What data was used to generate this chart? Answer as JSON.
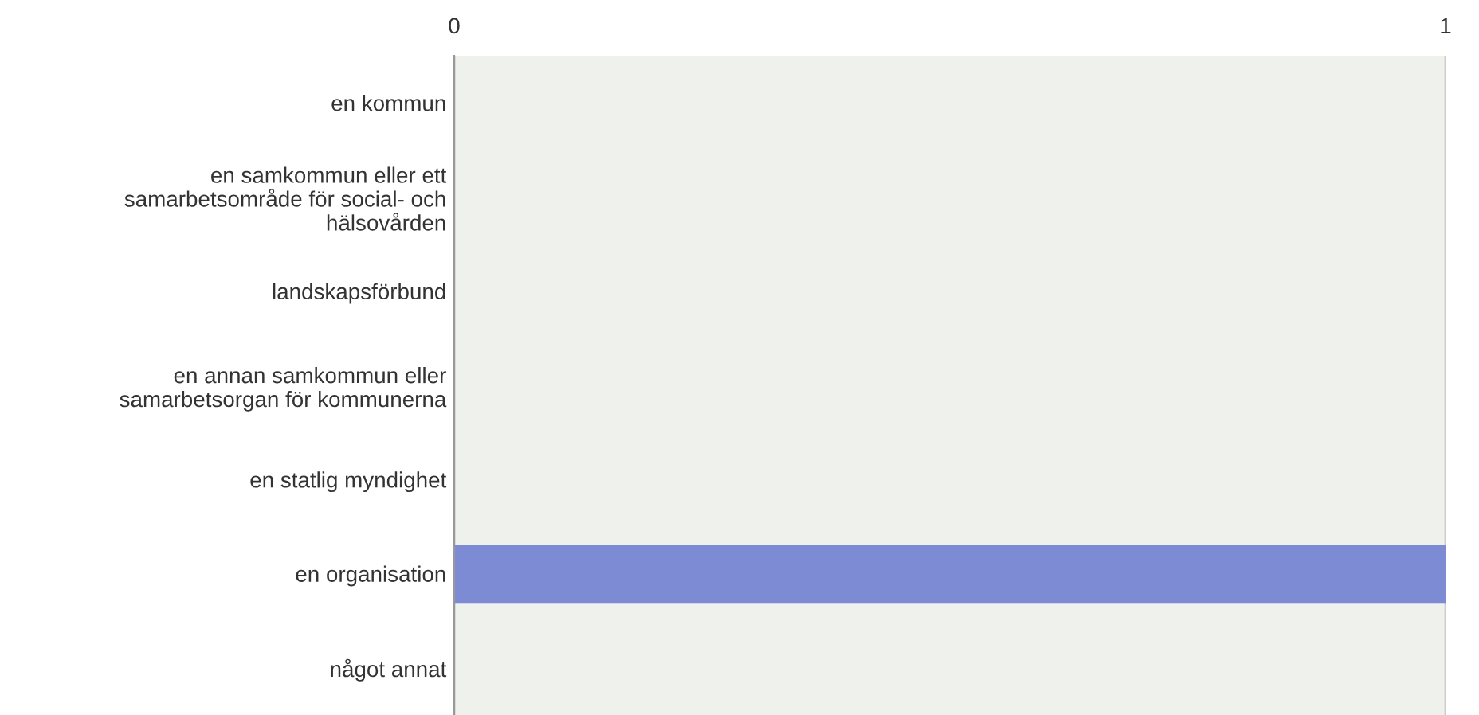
{
  "chart_data": {
    "type": "bar",
    "orientation": "horizontal",
    "categories": [
      "en kommun",
      "en samkommun eller ett\nsamarbetsområde för social- och\nhälsovården",
      "landskapsförbund",
      "en annan samkommun eller\nsamarbetsorgan för kommunerna",
      "en statlig myndighet",
      "en organisation",
      "något annat"
    ],
    "values": [
      0,
      0,
      0,
      0,
      0,
      1,
      0
    ],
    "color": "#7d8bd4",
    "xlim": [
      0,
      1
    ],
    "xticks": [
      0,
      1
    ],
    "grid": "x"
  }
}
